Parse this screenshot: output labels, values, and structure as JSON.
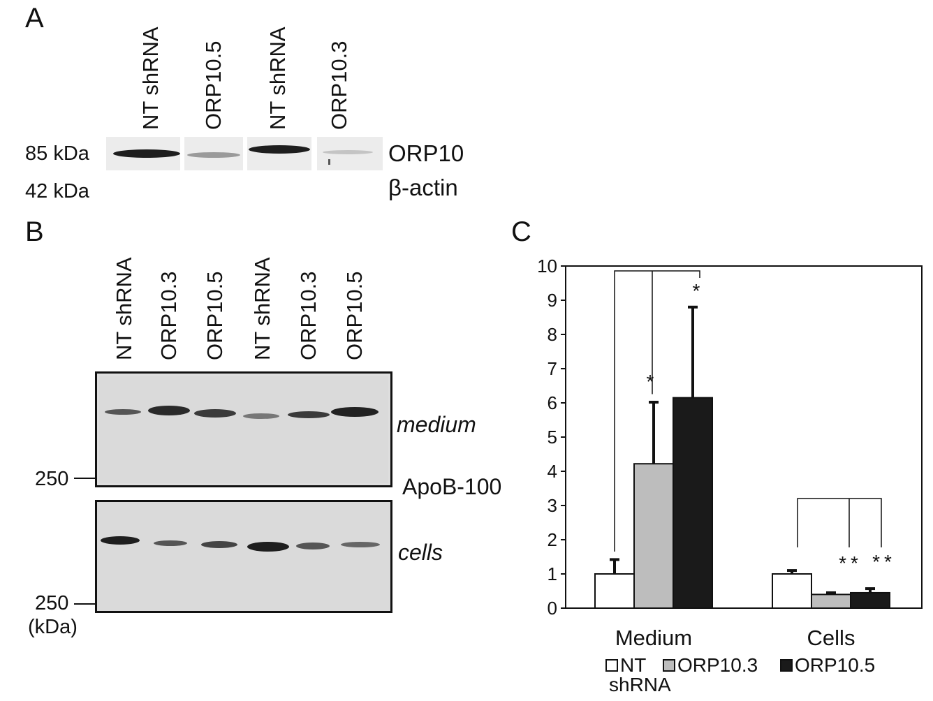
{
  "panel_a": {
    "letter": "A",
    "lanes": [
      "NT shRNA",
      "ORP10.5",
      "NT shRNA",
      "ORP10.3"
    ],
    "markers": [
      "85 kDa",
      "42 kDa"
    ],
    "bands": [
      "ORP10",
      "β-actin"
    ]
  },
  "panel_b": {
    "letter": "B",
    "lanes": [
      "NT shRNA",
      "ORP10.3",
      "ORP10.5",
      "NT shRNA",
      "ORP10.3",
      "ORP10.5"
    ],
    "blot_medium_label": "medium",
    "blot_cells_label": "cells",
    "protein_label": "ApoB-100",
    "marker_top": "250",
    "marker_bottom": "250",
    "unit": "(kDa)"
  },
  "panel_c": {
    "letter": "C"
  },
  "chart_data": {
    "type": "bar",
    "categories": [
      "Medium",
      "Cells"
    ],
    "series": [
      {
        "name": "NT shRNA",
        "values": [
          1.0,
          1.0
        ],
        "errors": [
          0.42,
          0.1
        ],
        "color": "#ffffff"
      },
      {
        "name": "ORP10.3",
        "values": [
          4.22,
          0.4
        ],
        "errors": [
          1.8,
          0.05
        ],
        "color": "#bdbdbd"
      },
      {
        "name": "ORP10.5",
        "values": [
          6.15,
          0.45
        ],
        "errors": [
          2.65,
          0.12
        ],
        "color": "#1a1a1a"
      }
    ],
    "ylim": [
      0,
      10
    ],
    "yticks": [
      "0",
      "1",
      "2",
      "3",
      "4",
      "5",
      "6",
      "7",
      "8",
      "9",
      "10"
    ],
    "significance": {
      "Medium": [
        "",
        "*",
        "*"
      ],
      "Cells": [
        "",
        "**",
        "**"
      ]
    },
    "legend": [
      "NT shRNA",
      "ORP10.3",
      "ORP10.5"
    ],
    "legend_position": "bottom"
  }
}
